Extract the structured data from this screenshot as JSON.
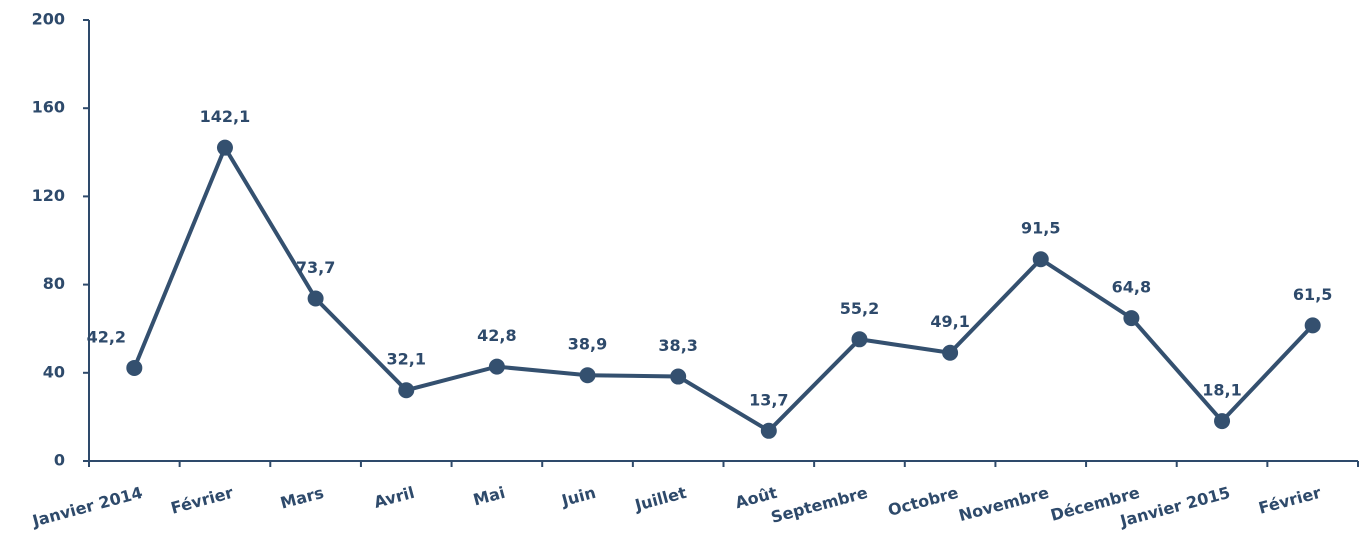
{
  "chart_data": {
    "type": "line",
    "categories": [
      "Janvier 2014",
      "Février",
      "Mars",
      "Avril",
      "Mai",
      "Juin",
      "Juillet",
      "Août",
      "Septembre",
      "Octobre",
      "Novembre",
      "Décembre",
      "Janvier 2015",
      "Février"
    ],
    "values": [
      42.2,
      142.1,
      73.7,
      32.1,
      42.8,
      38.9,
      38.3,
      13.7,
      55.2,
      49.1,
      91.5,
      64.8,
      18.1,
      61.5
    ],
    "value_labels": [
      "42,2",
      "142,1",
      "73,7",
      "32,1",
      "42,8",
      "38,9",
      "38,3",
      "13,7",
      "55,2",
      "49,1",
      "91,5",
      "64,8",
      "18,1",
      "61,5"
    ],
    "color": "#34506f",
    "ylim": [
      0,
      200
    ],
    "yticks": [
      0,
      40,
      80,
      120,
      160,
      200
    ],
    "grid": false
  }
}
